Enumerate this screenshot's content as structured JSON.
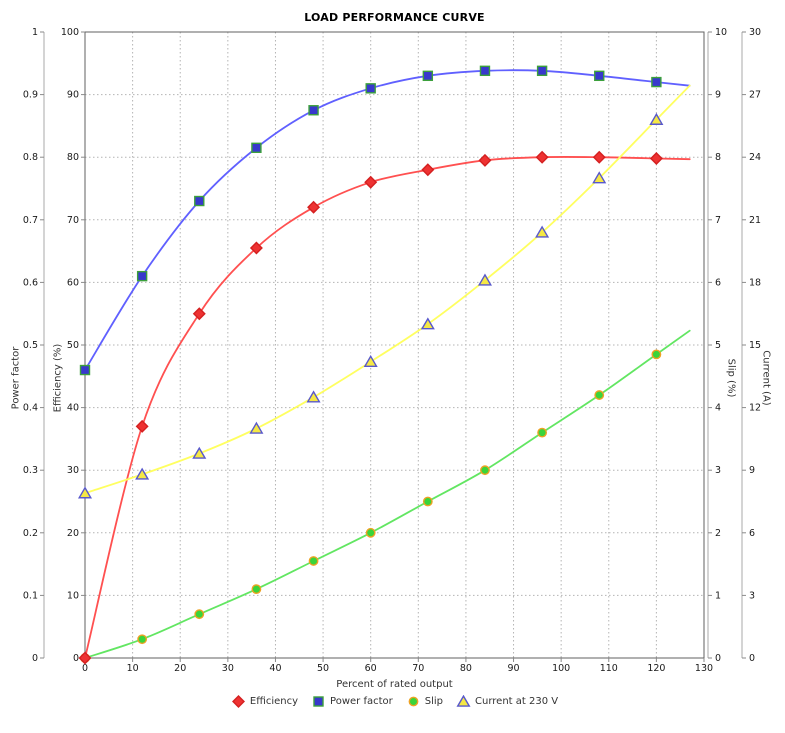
{
  "chart_data": {
    "type": "line",
    "title": "LOAD PERFORMANCE CURVE",
    "xlabel": "Percent of rated output",
    "grid": true,
    "legend_position": "bottom",
    "x": [
      0,
      12,
      24,
      36,
      48,
      60,
      72,
      84,
      96,
      108,
      120
    ],
    "axes": {
      "x": {
        "min": 0,
        "max": 130,
        "step": 10
      },
      "power_factor": {
        "label": "Power factor",
        "min": 0,
        "max": 1,
        "step": 0.1,
        "side": "left-outer"
      },
      "efficiency": {
        "label": "Efficiency (%)",
        "min": 0,
        "max": 100,
        "step": 10,
        "side": "left-inner"
      },
      "slip": {
        "label": "Slip (%)",
        "min": 0,
        "max": 10,
        "step": 1,
        "side": "right-inner"
      },
      "current": {
        "label": "Current (A)",
        "min": 0,
        "max": 30,
        "step": 3,
        "side": "right-outer"
      }
    },
    "series": [
      {
        "name": "Efficiency",
        "axis": "efficiency",
        "marker": "diamond",
        "line_color": "#ff5050",
        "marker_fill": "#ee3232",
        "marker_border": "#d42020",
        "values": [
          0,
          37,
          55,
          65.5,
          72,
          76,
          78,
          79.5,
          80,
          80,
          79.8
        ]
      },
      {
        "name": "Power factor",
        "axis": "power_factor",
        "marker": "square",
        "line_color": "#6060ff",
        "marker_fill": "#3838cc",
        "marker_border": "#3ca03c",
        "values": [
          0.46,
          0.61,
          0.73,
          0.815,
          0.875,
          0.91,
          0.93,
          0.938,
          0.938,
          0.93,
          0.92
        ]
      },
      {
        "name": "Slip",
        "axis": "slip",
        "marker": "circle",
        "line_color": "#62e662",
        "marker_fill": "#3ad43a",
        "marker_border": "#eea223",
        "values": [
          0,
          0.3,
          0.7,
          1.1,
          1.55,
          2.0,
          2.5,
          3.0,
          3.6,
          4.2,
          4.85
        ]
      },
      {
        "name": "Current at 230 V",
        "axis": "current",
        "marker": "triangle",
        "line_color": "#ffff60",
        "marker_fill": "#f5e845",
        "marker_border": "#5858cc",
        "values": [
          7.9,
          8.8,
          9.8,
          11.0,
          12.5,
          14.2,
          16.0,
          18.1,
          20.4,
          23.0,
          25.8
        ]
      }
    ]
  }
}
